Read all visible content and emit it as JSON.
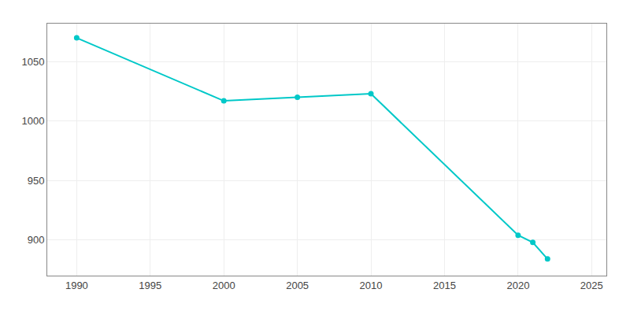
{
  "chart_data": {
    "type": "line",
    "x": [
      1990,
      2000,
      2005,
      2010,
      2020,
      2021,
      2022
    ],
    "values": [
      1070,
      1017,
      1020,
      1023,
      904,
      898,
      884
    ],
    "color": "#00C8C8",
    "marker": "circle",
    "xlim": [
      1988,
      2026
    ],
    "ylim": [
      870,
      1082
    ],
    "xticks": [
      1990,
      1995,
      2000,
      2005,
      2010,
      2015,
      2020,
      2025
    ],
    "yticks": [
      900,
      950,
      1000,
      1050
    ],
    "grid": true
  }
}
